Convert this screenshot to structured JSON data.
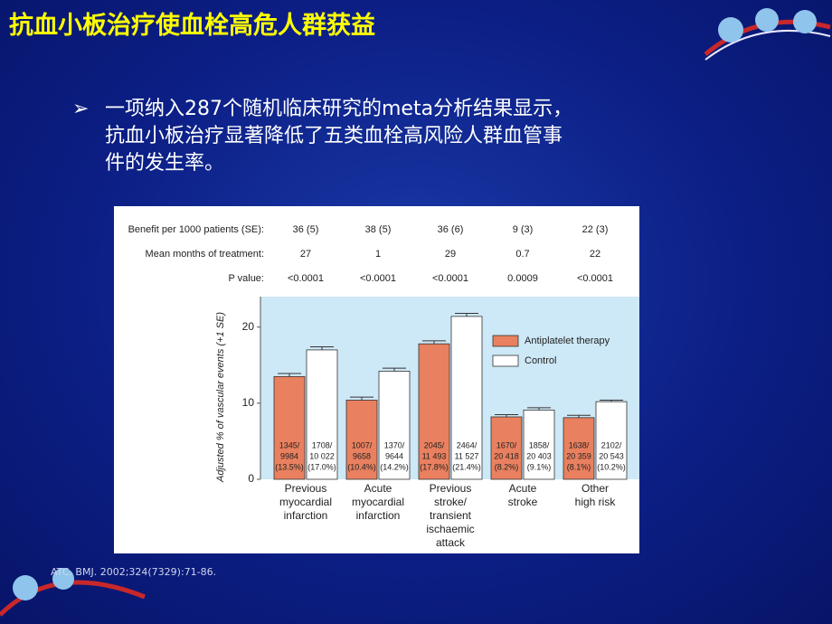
{
  "slide": {
    "title": "抗血小板治疗使血栓高危人群获益",
    "bullet": [
      "一项纳入287个随机临床研究的meta分析结果显示，",
      "抗血小板治疗显著降低了五类血栓高风险人群血管事",
      "件的发生率。"
    ],
    "citation": "ATC. BMJ. 2002;324(7329):71-86."
  },
  "chart_data": {
    "type": "bar",
    "header_rows": [
      {
        "label": "Benefit per 1000 patients (SE):",
        "values": [
          "36 (5)",
          "38 (5)",
          "36 (6)",
          "9 (3)",
          "22 (3)"
        ]
      },
      {
        "label": "Mean months of treatment:",
        "values": [
          "27",
          "1",
          "29",
          "0.7",
          "22"
        ]
      },
      {
        "label": "P value:",
        "values": [
          "<0.0001",
          "<0.0001",
          "<0.0001",
          "0.0009",
          "<0.0001"
        ]
      }
    ],
    "ylabel": "Adjusted % of vascular events (+1 SE)",
    "categories": [
      [
        "Previous",
        "myocardial",
        "infarction"
      ],
      [
        "Acute",
        "myocardial",
        "infarction"
      ],
      [
        "Previous",
        "stroke/",
        "transient",
        "ischaemic",
        "attack"
      ],
      [
        "Acute",
        "stroke"
      ],
      [
        "Other",
        "high risk"
      ]
    ],
    "series": [
      {
        "name": "Antiplatelet therapy",
        "color": "#e9805f",
        "values": [
          13.5,
          10.4,
          17.8,
          8.2,
          8.1
        ],
        "errors": [
          0.4,
          0.4,
          0.4,
          0.3,
          0.3
        ],
        "bar_labels": [
          [
            "1345/",
            "9984",
            "(13.5%)"
          ],
          [
            "1007/",
            "9658",
            "(10.4%)"
          ],
          [
            "2045/",
            "11 493",
            "(17.8%)"
          ],
          [
            "1670/",
            "20 418",
            "(8.2%)"
          ],
          [
            "1638/",
            "20 359",
            "(8.1%)"
          ]
        ]
      },
      {
        "name": "Control",
        "color": "#ffffff",
        "values": [
          17.0,
          14.2,
          21.4,
          9.1,
          10.2
        ],
        "errors": [
          0.4,
          0.4,
          0.4,
          0.3,
          0.2
        ],
        "bar_labels": [
          [
            "1708/",
            "10 022",
            "(17.0%)"
          ],
          [
            "1370/",
            "9644",
            "(14.2%)"
          ],
          [
            "2464/",
            "11 527",
            "(21.4%)"
          ],
          [
            "1858/",
            "20 403",
            "(9.1%)"
          ],
          [
            "2102/",
            "20 543",
            "(10.2%)"
          ]
        ]
      }
    ],
    "ylim": [
      0,
      24
    ],
    "yticks": [
      0,
      10,
      20
    ],
    "grid": false,
    "legend": "upper right"
  }
}
